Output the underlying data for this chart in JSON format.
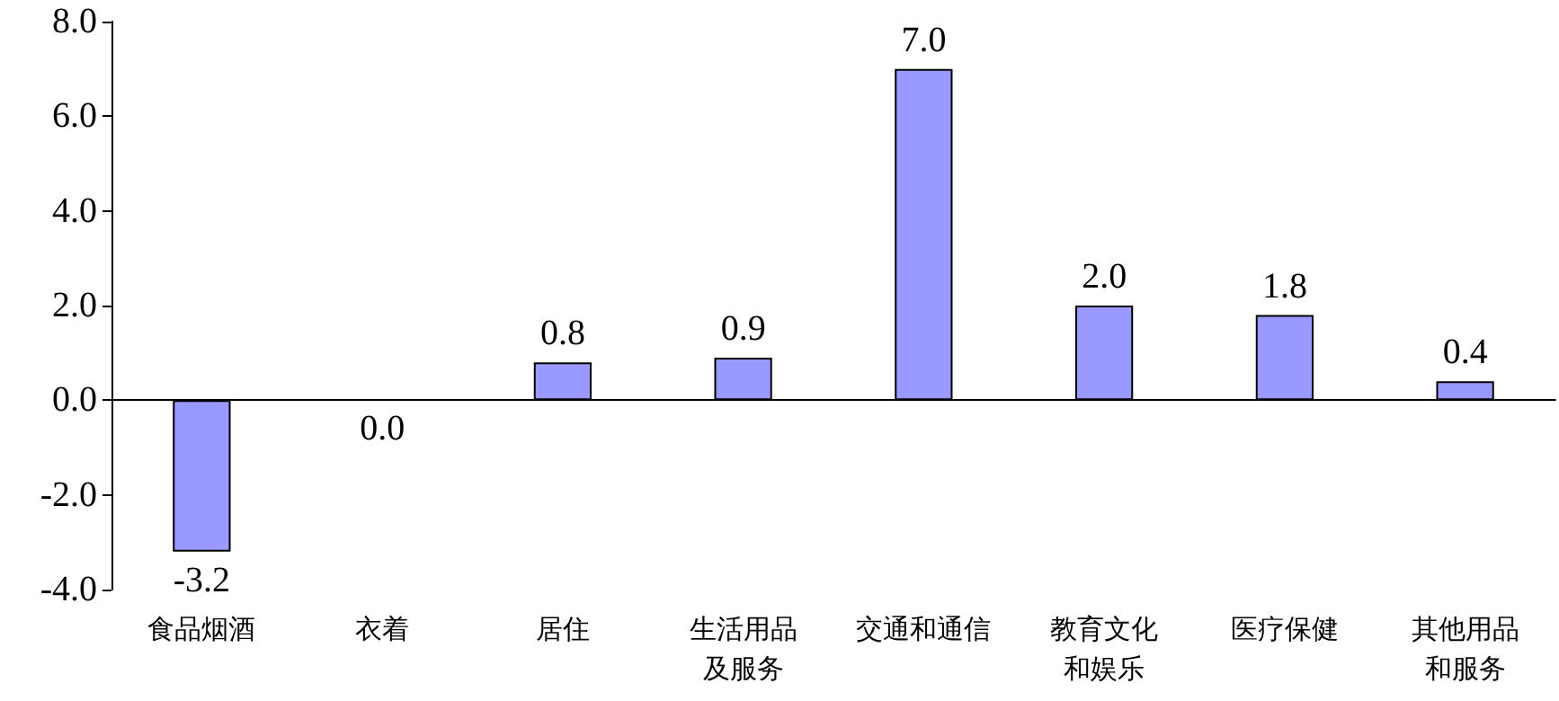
{
  "chart_data": {
    "type": "bar",
    "categories": [
      "食品烟酒",
      "衣着",
      "居住",
      "生活用品及服务",
      "交通和通信",
      "教育文化和娱乐",
      "医疗保健",
      "其他用品和服务"
    ],
    "values": [
      -3.2,
      0.0,
      0.8,
      0.9,
      7.0,
      2.0,
      1.8,
      0.4
    ],
    "value_labels": [
      "-3.2",
      "0.0",
      "0.8",
      "0.9",
      "7.0",
      "2.0",
      "1.8",
      "0.4"
    ],
    "color": "#9999ff",
    "ylim": [
      -4,
      8
    ],
    "yticks": [
      {
        "value": -4,
        "label": "-4.0"
      },
      {
        "value": -2,
        "label": "-2.0"
      },
      {
        "value": 0,
        "label": "0.0"
      },
      {
        "value": 2,
        "label": "2.0"
      },
      {
        "value": 4,
        "label": "4.0"
      },
      {
        "value": 6,
        "label": "6.0"
      },
      {
        "value": 8,
        "label": "8.0"
      }
    ],
    "tick_labels": [
      "x",
      "y"
    ]
  }
}
